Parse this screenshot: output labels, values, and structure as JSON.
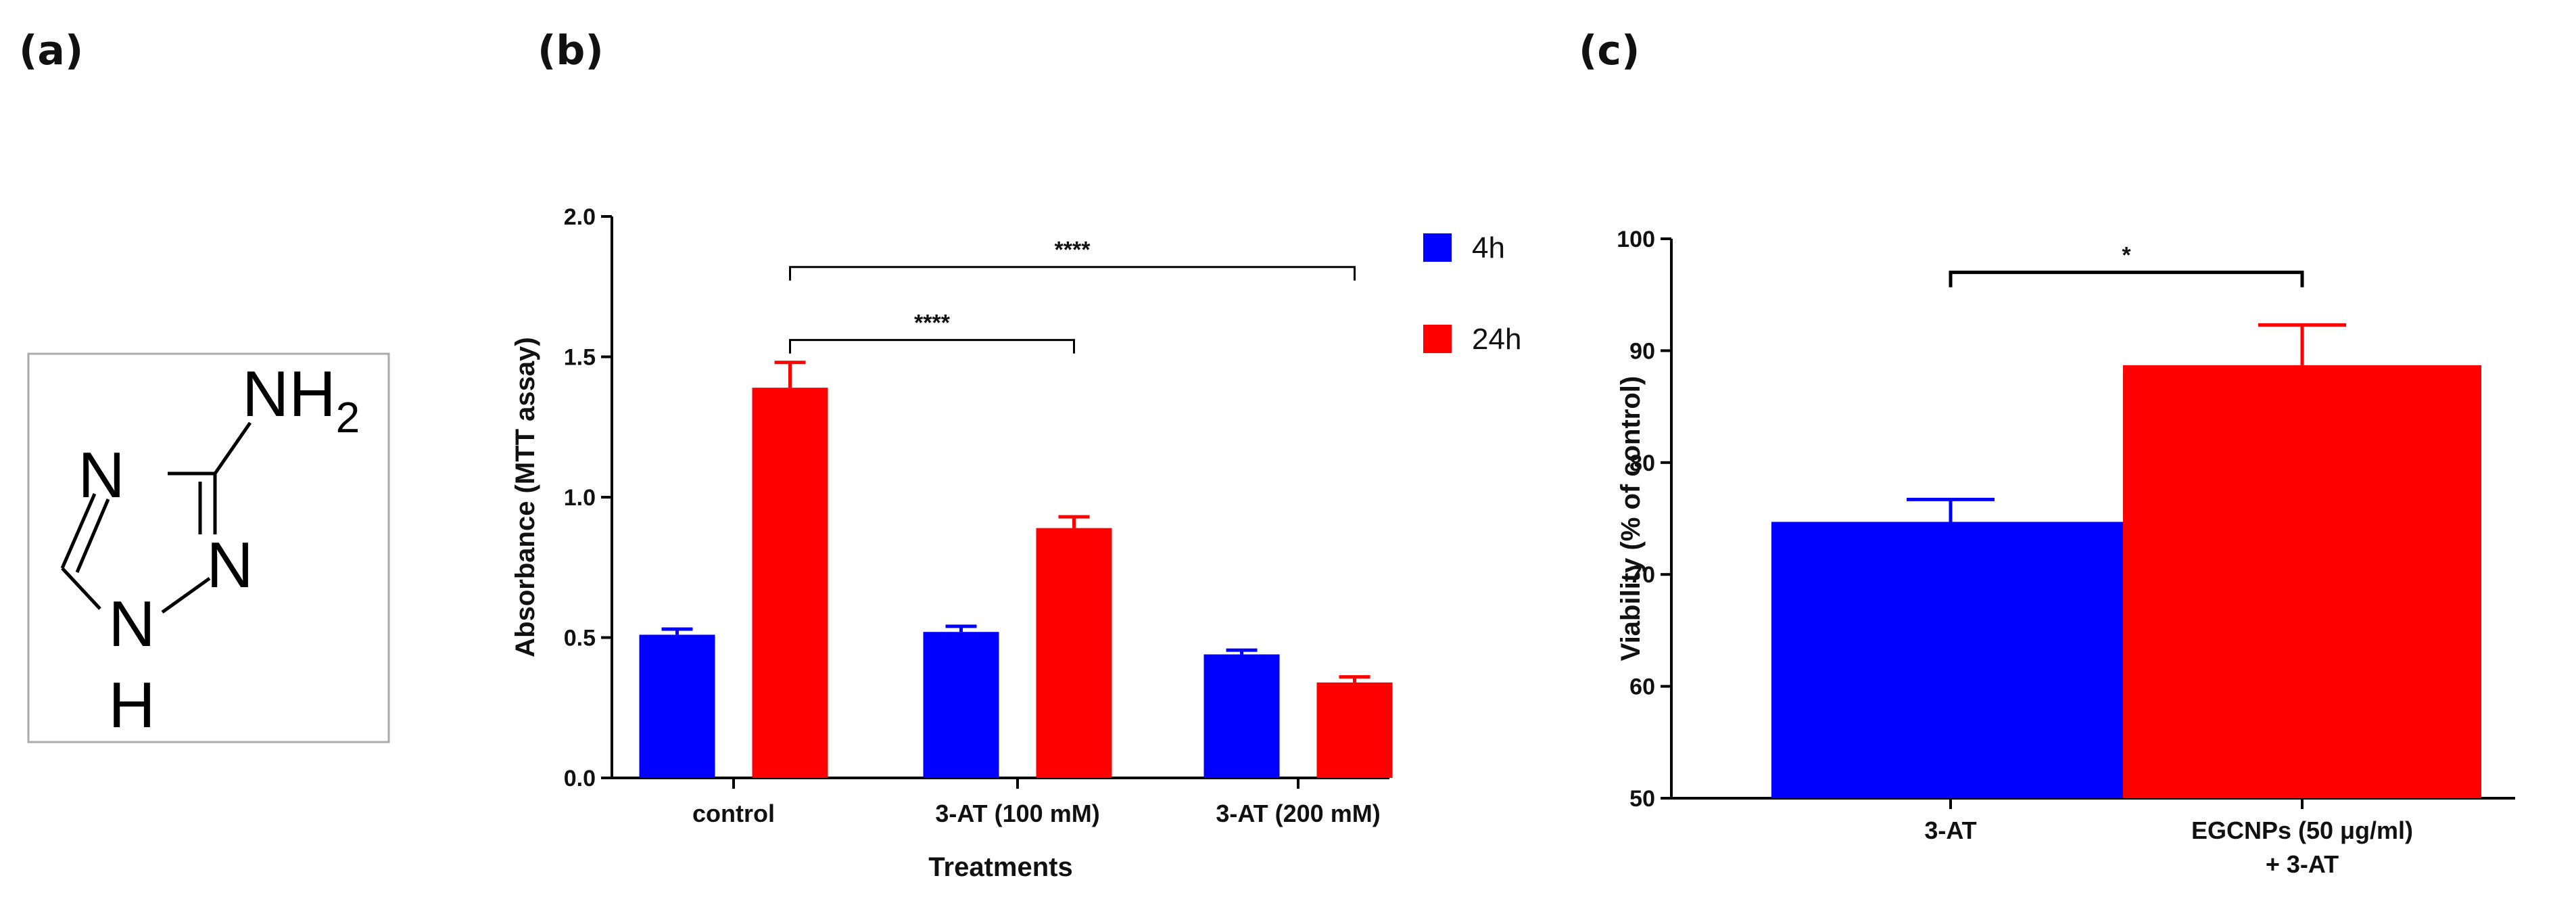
{
  "panels": {
    "a": {
      "label": "(a)"
    },
    "b": {
      "label": "(b)"
    },
    "c": {
      "label": "(c)"
    }
  },
  "molecule": {
    "atoms": {
      "n4": "N",
      "n2": "N",
      "n1": "N",
      "h1": "H",
      "nh2": "NH",
      "nh2_sub": "2"
    }
  },
  "chart_data": [
    {
      "id": "b",
      "type": "bar",
      "title": "",
      "xlabel": "Treatments",
      "ylabel": "Absorbance (MTT assay)",
      "ylim": [
        0,
        2.0
      ],
      "yticks": [
        0.0,
        0.5,
        1.0,
        1.5,
        2.0
      ],
      "ytick_labels": [
        "0.0",
        "0.5",
        "1.0",
        "1.5",
        "2.0"
      ],
      "categories": [
        "control",
        "3-AT (100 mM)",
        "3-AT (200 mM)"
      ],
      "series": [
        {
          "name": "4h",
          "color": "#0000ff",
          "values": [
            0.51,
            0.52,
            0.44
          ],
          "errors": [
            0.02,
            0.02,
            0.015
          ]
        },
        {
          "name": "24h",
          "color": "#ff0000",
          "values": [
            1.39,
            0.89,
            0.34
          ],
          "errors": [
            0.09,
            0.04,
            0.02
          ]
        }
      ],
      "legend_position": "top-right",
      "significance": [
        {
          "from_category": 0,
          "to_category": 1,
          "level": 1.56,
          "text": "****"
        },
        {
          "from_category": 0,
          "to_category": 2,
          "level": 1.82,
          "text": "****"
        }
      ]
    },
    {
      "id": "c",
      "type": "bar",
      "title": "",
      "xlabel": "",
      "ylabel": "Viability (% of control)",
      "ylim": [
        50,
        100
      ],
      "yticks": [
        50,
        60,
        70,
        80,
        90,
        100
      ],
      "ytick_labels": [
        "50",
        "60",
        "70",
        "80",
        "90",
        "100"
      ],
      "categories": [
        [
          "3-AT"
        ],
        [
          "EGCNPs (50 μg/ml)",
          "+ 3-AT"
        ]
      ],
      "series": [
        {
          "name": "",
          "colors": [
            "#0000ff",
            "#ff0000"
          ],
          "values": [
            74.7,
            88.7
          ],
          "errors": [
            2.0,
            3.6
          ]
        }
      ],
      "significance": [
        {
          "from_category": 0,
          "to_category": 1,
          "level": 97,
          "text": "*"
        }
      ]
    }
  ]
}
